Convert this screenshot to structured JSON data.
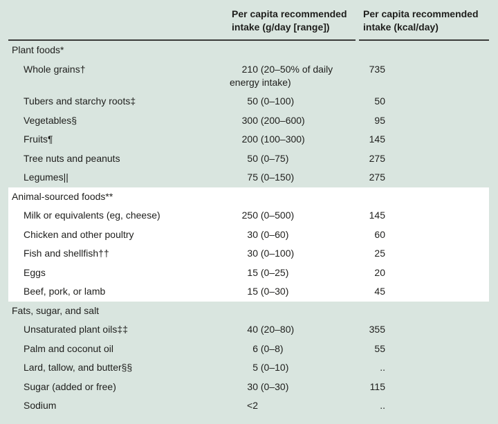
{
  "table": {
    "columns": [
      {
        "label": ""
      },
      {
        "label": "Per capita recommended intake (g/day [range])"
      },
      {
        "label": "Per capita recommended intake (kcal/day)"
      }
    ],
    "sections": [
      {
        "header": "Plant foods*",
        "highlight": false,
        "rows": [
          {
            "food": "Whole grains†",
            "amount": "210",
            "range": "(20–50% of daily energy intake)",
            "kcal": "735"
          },
          {
            "food": "Tubers and starchy roots‡",
            "amount": "50",
            "range": "(0–100)",
            "kcal": "50"
          },
          {
            "food": "Vegetables§",
            "amount": "300",
            "range": "(200–600)",
            "kcal": "95"
          },
          {
            "food": "Fruits¶",
            "amount": "200",
            "range": "(100–300)",
            "kcal": "145"
          },
          {
            "food": "Tree nuts and peanuts",
            "amount": "50",
            "range": "(0–75)",
            "kcal": "275"
          },
          {
            "food": "Legumes||",
            "amount": "75",
            "range": "(0–150)",
            "kcal": "275"
          }
        ]
      },
      {
        "header": "Animal-sourced foods**",
        "highlight": true,
        "rows": [
          {
            "food": "Milk or equivalents (eg, cheese)",
            "amount": "250",
            "range": "(0–500)",
            "kcal": "145"
          },
          {
            "food": "Chicken and other poultry",
            "amount": "30",
            "range": "(0–60)",
            "kcal": "60"
          },
          {
            "food": "Fish and shellfish††",
            "amount": "30",
            "range": "(0–100)",
            "kcal": "25"
          },
          {
            "food": "Eggs",
            "amount": "15",
            "range": "(0–25)",
            "kcal": "20"
          },
          {
            "food": "Beef, pork, or lamb",
            "amount": "15",
            "range": "(0–30)",
            "kcal": "45"
          }
        ]
      },
      {
        "header": "Fats, sugar, and salt",
        "highlight": false,
        "rows": [
          {
            "food": "Unsaturated plant oils‡‡",
            "amount": "40",
            "range": "(20–80)",
            "kcal": "355"
          },
          {
            "food": "Palm and coconut oil",
            "amount": "6",
            "range": "(0–8)",
            "kcal": "55"
          },
          {
            "food": "Lard, tallow, and butter§§",
            "amount": "5",
            "range": "(0–10)",
            "kcal": ".."
          },
          {
            "food": "Sugar (added or free)",
            "amount": "30",
            "range": "(0–30)",
            "kcal": "115"
          },
          {
            "food": "Sodium",
            "amount": "<2",
            "range": "",
            "kcal": ".."
          }
        ]
      }
    ]
  },
  "colors": {
    "background": "#d9e5df",
    "highlight": "#ffffff",
    "rule": "#3a3a39",
    "text": "#1e1e1c"
  }
}
